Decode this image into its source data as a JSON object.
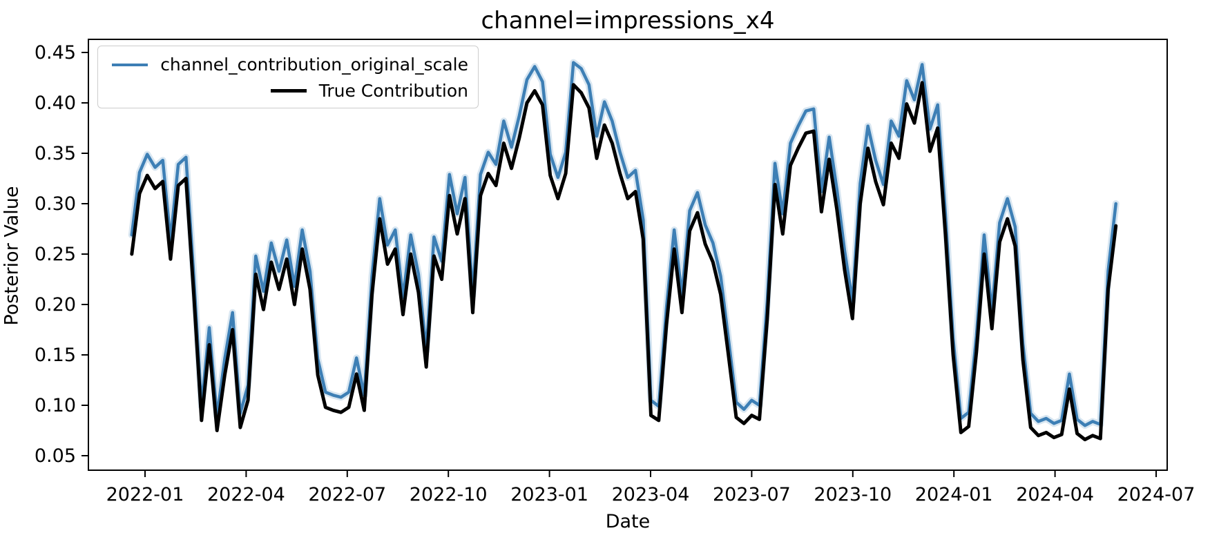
{
  "chart_data": {
    "type": "line",
    "title": "channel=impressions_x4",
    "xlabel": "Date",
    "ylabel": "Posterior Value",
    "grid": false,
    "legend_position": "upper left",
    "ylim": [
      0.036,
      0.463
    ],
    "xlim": [
      "2021-11-11",
      "2024-07-12"
    ],
    "y_ticks": {
      "labels": [
        "0.45",
        "0.40",
        "0.35",
        "0.30",
        "0.25",
        "0.20",
        "0.15",
        "0.10",
        "0.05"
      ],
      "values": [
        0.45,
        0.4,
        0.35,
        0.3,
        0.25,
        0.2,
        0.15,
        0.1,
        0.05
      ]
    },
    "x_ticks": {
      "labels": [
        "2022-01",
        "2022-04",
        "2022-07",
        "2022-10",
        "2023-01",
        "2023-04",
        "2023-07",
        "2023-10",
        "2024-01",
        "2024-04",
        "2024-07"
      ]
    },
    "x_start_date": "2021-12-20",
    "freq_days": 7,
    "colors": {
      "estimate_line": "#3d7fb5",
      "estimate_band": "#b8d2e6",
      "true_line": "#000000",
      "legend_border": "#cccccc"
    },
    "series": [
      {
        "name": "channel_contribution_original_scale",
        "color": "#3d7fb5",
        "linewidth": 4.5,
        "values": [
          0.269,
          0.331,
          0.349,
          0.336,
          0.343,
          0.264,
          0.339,
          0.346,
          0.228,
          0.099,
          0.177,
          0.089,
          0.146,
          0.192,
          0.092,
          0.12,
          0.248,
          0.213,
          0.261,
          0.233,
          0.264,
          0.218,
          0.274,
          0.233,
          0.146,
          0.113,
          0.11,
          0.108,
          0.113,
          0.147,
          0.11,
          0.228,
          0.305,
          0.259,
          0.274,
          0.207,
          0.269,
          0.23,
          0.154,
          0.267,
          0.243,
          0.329,
          0.29,
          0.326,
          0.209,
          0.329,
          0.351,
          0.339,
          0.382,
          0.356,
          0.387,
          0.423,
          0.436,
          0.421,
          0.349,
          0.326,
          0.351,
          0.44,
          0.434,
          0.418,
          0.367,
          0.401,
          0.382,
          0.351,
          0.326,
          0.333,
          0.284,
          0.105,
          0.099,
          0.197,
          0.274,
          0.209,
          0.293,
          0.311,
          0.279,
          0.261,
          0.228,
          0.166,
          0.103,
          0.096,
          0.105,
          0.1,
          0.202,
          0.34,
          0.29,
          0.36,
          0.377,
          0.392,
          0.394,
          0.312,
          0.366,
          0.314,
          0.253,
          0.203,
          0.32,
          0.377,
          0.343,
          0.319,
          0.382,
          0.367,
          0.422,
          0.403,
          0.438,
          0.374,
          0.398,
          0.29,
          0.166,
          0.087,
          0.093,
          0.169,
          0.269,
          0.193,
          0.281,
          0.305,
          0.277,
          0.161,
          0.092,
          0.084,
          0.087,
          0.082,
          0.085,
          0.131,
          0.086,
          0.08,
          0.084,
          0.081,
          0.233,
          0.3
        ]
      },
      {
        "name": "True Contribution",
        "color": "#000000",
        "linewidth": 5,
        "values": [
          0.25,
          0.31,
          0.328,
          0.315,
          0.322,
          0.245,
          0.318,
          0.325,
          0.21,
          0.085,
          0.16,
          0.075,
          0.13,
          0.175,
          0.078,
          0.105,
          0.23,
          0.195,
          0.242,
          0.215,
          0.245,
          0.2,
          0.255,
          0.215,
          0.13,
          0.098,
          0.095,
          0.093,
          0.098,
          0.131,
          0.095,
          0.21,
          0.285,
          0.24,
          0.255,
          0.19,
          0.25,
          0.212,
          0.138,
          0.248,
          0.225,
          0.308,
          0.27,
          0.305,
          0.192,
          0.308,
          0.33,
          0.318,
          0.36,
          0.335,
          0.365,
          0.4,
          0.412,
          0.398,
          0.328,
          0.305,
          0.33,
          0.418,
          0.41,
          0.395,
          0.345,
          0.378,
          0.36,
          0.33,
          0.305,
          0.312,
          0.265,
          0.09,
          0.085,
          0.18,
          0.255,
          0.192,
          0.273,
          0.291,
          0.26,
          0.242,
          0.21,
          0.15,
          0.088,
          0.082,
          0.09,
          0.086,
          0.185,
          0.319,
          0.27,
          0.338,
          0.355,
          0.37,
          0.372,
          0.292,
          0.344,
          0.294,
          0.234,
          0.186,
          0.3,
          0.355,
          0.322,
          0.299,
          0.36,
          0.345,
          0.399,
          0.38,
          0.42,
          0.352,
          0.375,
          0.27,
          0.15,
          0.073,
          0.079,
          0.153,
          0.25,
          0.176,
          0.262,
          0.285,
          0.258,
          0.145,
          0.078,
          0.07,
          0.073,
          0.068,
          0.071,
          0.116,
          0.072,
          0.066,
          0.07,
          0.067,
          0.215,
          0.278
        ]
      }
    ]
  }
}
